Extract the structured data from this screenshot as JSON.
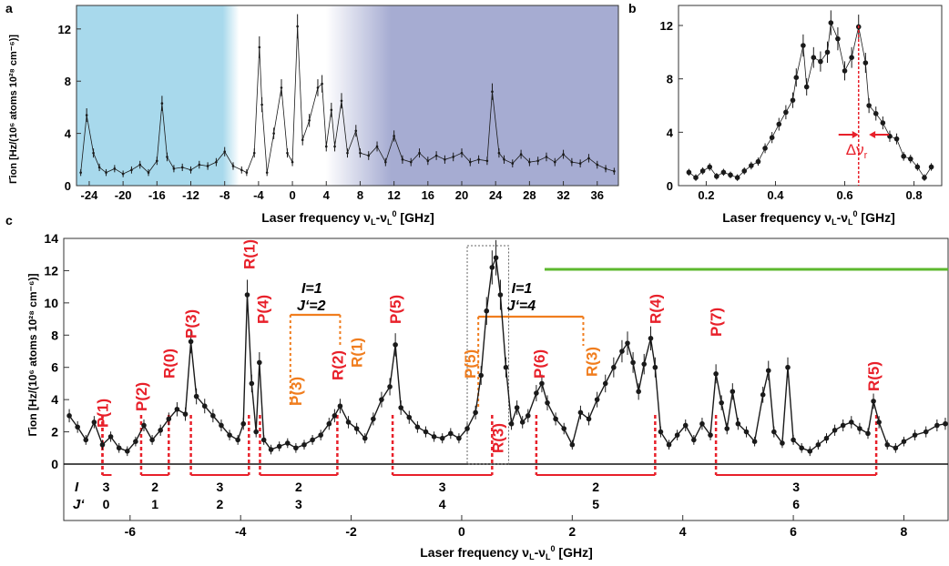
{
  "panels": {
    "a": {
      "letter": "a",
      "xlabel": "Laser frequency ν",
      "xlabel_sub1": "L",
      "xlabel_mid": "-ν",
      "xlabel_sub2": "L",
      "xlabel_sup": "0",
      "xlabel_unit": " [GHz]",
      "ylabel": "Γ̄ion [Hz/(10⁶ atoms 10²⁸ cm⁻⁶)]",
      "xticks": [
        "-24",
        "-20",
        "-16",
        "-12",
        "-8",
        "-4",
        "0",
        "4",
        "8",
        "12",
        "16",
        "20",
        "24",
        "28",
        "32",
        "36"
      ],
      "yticks": [
        "0",
        "4",
        "8",
        "12"
      ]
    },
    "b": {
      "letter": "b",
      "xlabel": "Laser frequency ν",
      "xlabel_sub1": "L",
      "xlabel_mid": "-ν",
      "xlabel_sub2": "L",
      "xlabel_sup": "0",
      "xlabel_unit": " [GHz]",
      "xticks": [
        "0.2",
        "0.4",
        "0.6",
        "0.8"
      ],
      "yticks": [
        "0",
        "4",
        "8",
        "12"
      ],
      "annotation": "Δν",
      "annotation_sub": "r"
    },
    "c": {
      "letter": "c",
      "xlabel": "Laser frequency ν",
      "xlabel_sub1": "L",
      "xlabel_mid": "-ν",
      "xlabel_sub2": "L",
      "xlabel_sup": "0",
      "xlabel_unit": " [GHz]",
      "ylabel": "Γ̄ion [Hz/(10⁶ atoms 10²⁸ cm⁻⁶)]",
      "xticks": [
        "-6",
        "-4",
        "-2",
        "0",
        "2",
        "4",
        "6",
        "8"
      ],
      "yticks": [
        "0",
        "2",
        "4",
        "6",
        "8",
        "10",
        "12",
        "14"
      ],
      "row_labels": [
        "I",
        "J‘"
      ],
      "groups": [
        {
          "I": "3",
          "J": "0"
        },
        {
          "I": "2",
          "J": "1"
        },
        {
          "I": "3",
          "J": "2"
        },
        {
          "I": "2",
          "J": "3"
        },
        {
          "I": "3",
          "J": "4"
        },
        {
          "I": "2",
          "J": "5"
        },
        {
          "I": "3",
          "J": "6"
        }
      ],
      "red_labels": [
        "P(1)",
        "P(2)",
        "R(0)",
        "P(3)",
        "R(1)",
        "P(4)",
        "R(2)",
        "P(5)",
        "R(3)",
        "P(6)",
        "R(4)",
        "P(7)",
        "R(5)"
      ],
      "orange_labels": [
        "P(3)",
        "R(1)",
        "P(5)",
        "R(3)"
      ],
      "box_labels": [
        {
          "l1": "I=1",
          "l2": "J‘=2"
        },
        {
          "l1": "I=1",
          "l2": "J‘=4"
        }
      ]
    }
  },
  "colors": {
    "data": "#1a1a1a",
    "red": "#e8202a",
    "orange": "#f07d1e",
    "green": "#5cb82e",
    "cyan": "#a8d9ec",
    "indigo": "#a6acd2"
  },
  "chart_data": [
    {
      "panel": "a",
      "type": "scatter",
      "xlim": [
        -25.5,
        38.5
      ],
      "ylim": [
        0,
        13.8
      ],
      "points": [
        [
          -25,
          1.0
        ],
        [
          -24.3,
          5.4
        ],
        [
          -23.5,
          2.5
        ],
        [
          -22.8,
          1.4
        ],
        [
          -22,
          1.0
        ],
        [
          -21,
          1.3
        ],
        [
          -20,
          0.9
        ],
        [
          -19,
          1.2
        ],
        [
          -18,
          1.6
        ],
        [
          -17,
          1.0
        ],
        [
          -16,
          1.9
        ],
        [
          -15.4,
          6.3
        ],
        [
          -14.8,
          2.2
        ],
        [
          -14,
          1.3
        ],
        [
          -13,
          1.4
        ],
        [
          -12,
          1.2
        ],
        [
          -11,
          1.6
        ],
        [
          -10,
          1.5
        ],
        [
          -9,
          1.8
        ],
        [
          -8,
          2.6
        ],
        [
          -7,
          1.5
        ],
        [
          -6,
          1.2
        ],
        [
          -5.4,
          1.0
        ],
        [
          -4.5,
          2.5
        ],
        [
          -3.9,
          10.6
        ],
        [
          -3.6,
          6.2
        ],
        [
          -3,
          1.0
        ],
        [
          -2.2,
          4.0
        ],
        [
          -1.3,
          7.5
        ],
        [
          -0.6,
          2.5
        ],
        [
          0,
          1.8
        ],
        [
          0.6,
          12.2
        ],
        [
          1.2,
          3.5
        ],
        [
          2,
          5.0
        ],
        [
          3,
          7.5
        ],
        [
          3.5,
          7.8
        ],
        [
          4,
          3.0
        ],
        [
          4.6,
          5.8
        ],
        [
          5,
          3.0
        ],
        [
          5.8,
          6.5
        ],
        [
          6.5,
          2.5
        ],
        [
          7.5,
          4.2
        ],
        [
          8,
          2.5
        ],
        [
          9,
          2.3
        ],
        [
          10,
          3.0
        ],
        [
          11,
          1.8
        ],
        [
          12,
          3.8
        ],
        [
          13,
          2.0
        ],
        [
          14,
          1.8
        ],
        [
          15,
          2.5
        ],
        [
          16,
          1.9
        ],
        [
          17,
          2.3
        ],
        [
          18,
          2.0
        ],
        [
          19,
          2.2
        ],
        [
          20,
          2.5
        ],
        [
          21,
          1.8
        ],
        [
          22,
          2.0
        ],
        [
          23,
          1.9
        ],
        [
          23.6,
          7.2
        ],
        [
          24.4,
          2.5
        ],
        [
          25,
          2.0
        ],
        [
          26,
          1.7
        ],
        [
          27,
          2.4
        ],
        [
          28,
          1.8
        ],
        [
          29,
          1.9
        ],
        [
          30,
          2.2
        ],
        [
          31,
          1.8
        ],
        [
          32,
          2.4
        ],
        [
          33,
          1.8
        ],
        [
          34,
          1.7
        ],
        [
          35,
          2.1
        ],
        [
          36,
          1.6
        ],
        [
          37,
          1.3
        ],
        [
          38,
          1.1
        ]
      ]
    },
    {
      "panel": "b",
      "type": "scatter",
      "xlim": [
        0.12,
        0.88
      ],
      "ylim": [
        0,
        13.5
      ],
      "points": [
        [
          0.15,
          1.0
        ],
        [
          0.17,
          0.6
        ],
        [
          0.19,
          1.1
        ],
        [
          0.21,
          1.4
        ],
        [
          0.23,
          0.7
        ],
        [
          0.25,
          1.0
        ],
        [
          0.27,
          0.8
        ],
        [
          0.29,
          0.6
        ],
        [
          0.31,
          1.1
        ],
        [
          0.33,
          1.5
        ],
        [
          0.35,
          1.8
        ],
        [
          0.37,
          2.8
        ],
        [
          0.39,
          3.6
        ],
        [
          0.41,
          4.6
        ],
        [
          0.43,
          5.5
        ],
        [
          0.45,
          6.4
        ],
        [
          0.46,
          8.1
        ],
        [
          0.48,
          10.5
        ],
        [
          0.49,
          7.4
        ],
        [
          0.51,
          9.6
        ],
        [
          0.53,
          9.3
        ],
        [
          0.55,
          10.0
        ],
        [
          0.56,
          12.2
        ],
        [
          0.58,
          11.0
        ],
        [
          0.6,
          8.6
        ],
        [
          0.62,
          9.6
        ],
        [
          0.64,
          11.9
        ],
        [
          0.66,
          9.2
        ],
        [
          0.67,
          6.0
        ],
        [
          0.69,
          5.4
        ],
        [
          0.71,
          4.7
        ],
        [
          0.73,
          3.7
        ],
        [
          0.75,
          3.5
        ],
        [
          0.77,
          2.2
        ],
        [
          0.79,
          2.0
        ],
        [
          0.81,
          1.4
        ],
        [
          0.83,
          0.6
        ],
        [
          0.85,
          1.4
        ]
      ],
      "marker_x": 0.64,
      "width_range": [
        0.64,
        0.67
      ]
    },
    {
      "panel": "c",
      "type": "line",
      "xlim": [
        -7.2,
        8.8
      ],
      "ylim": [
        -0.3,
        14
      ],
      "points": [
        [
          -7.1,
          3.0
        ],
        [
          -6.95,
          2.3
        ],
        [
          -6.8,
          1.5
        ],
        [
          -6.65,
          2.6
        ],
        [
          -6.5,
          1.2
        ],
        [
          -6.35,
          1.7
        ],
        [
          -6.2,
          1.0
        ],
        [
          -6.05,
          0.8
        ],
        [
          -5.9,
          1.4
        ],
        [
          -5.75,
          2.4
        ],
        [
          -5.6,
          1.5
        ],
        [
          -5.45,
          2.1
        ],
        [
          -5.3,
          2.8
        ],
        [
          -5.15,
          3.4
        ],
        [
          -5.0,
          3.1
        ],
        [
          -4.9,
          7.6
        ],
        [
          -4.8,
          4.2
        ],
        [
          -4.65,
          3.6
        ],
        [
          -4.5,
          3.0
        ],
        [
          -4.35,
          2.4
        ],
        [
          -4.2,
          1.8
        ],
        [
          -4.05,
          1.5
        ],
        [
          -3.95,
          2.5
        ],
        [
          -3.88,
          10.5
        ],
        [
          -3.8,
          5.0
        ],
        [
          -3.72,
          2.0
        ],
        [
          -3.66,
          6.3
        ],
        [
          -3.58,
          1.5
        ],
        [
          -3.45,
          0.9
        ],
        [
          -3.3,
          1.1
        ],
        [
          -3.15,
          1.3
        ],
        [
          -3.0,
          1.0
        ],
        [
          -2.85,
          1.2
        ],
        [
          -2.7,
          1.5
        ],
        [
          -2.55,
          1.8
        ],
        [
          -2.4,
          2.5
        ],
        [
          -2.3,
          3.0
        ],
        [
          -2.2,
          3.6
        ],
        [
          -2.05,
          2.6
        ],
        [
          -1.9,
          2.2
        ],
        [
          -1.75,
          1.6
        ],
        [
          -1.6,
          2.8
        ],
        [
          -1.45,
          4.0
        ],
        [
          -1.3,
          4.8
        ],
        [
          -1.2,
          7.4
        ],
        [
          -1.1,
          3.5
        ],
        [
          -0.95,
          2.9
        ],
        [
          -0.8,
          2.3
        ],
        [
          -0.65,
          2.0
        ],
        [
          -0.5,
          1.7
        ],
        [
          -0.35,
          1.6
        ],
        [
          -0.2,
          1.9
        ],
        [
          -0.05,
          1.6
        ],
        [
          0.1,
          2.2
        ],
        [
          0.25,
          3.2
        ],
        [
          0.35,
          5.5
        ],
        [
          0.45,
          9.5
        ],
        [
          0.55,
          12.2
        ],
        [
          0.62,
          12.8
        ],
        [
          0.7,
          10.5
        ],
        [
          0.8,
          6.0
        ],
        [
          0.9,
          2.5
        ],
        [
          1.0,
          3.5
        ],
        [
          1.1,
          2.6
        ],
        [
          1.2,
          3.0
        ],
        [
          1.35,
          4.4
        ],
        [
          1.45,
          5.0
        ],
        [
          1.55,
          3.8
        ],
        [
          1.7,
          2.8
        ],
        [
          1.85,
          2.2
        ],
        [
          2.0,
          1.2
        ],
        [
          2.15,
          3.2
        ],
        [
          2.3,
          2.8
        ],
        [
          2.45,
          4.0
        ],
        [
          2.6,
          5.0
        ],
        [
          2.75,
          6.0
        ],
        [
          2.9,
          7.0
        ],
        [
          3.0,
          7.5
        ],
        [
          3.1,
          6.3
        ],
        [
          3.2,
          4.5
        ],
        [
          3.3,
          6.2
        ],
        [
          3.42,
          7.8
        ],
        [
          3.5,
          6.0
        ],
        [
          3.6,
          2.0
        ],
        [
          3.75,
          1.2
        ],
        [
          3.9,
          1.8
        ],
        [
          4.05,
          2.4
        ],
        [
          4.2,
          1.5
        ],
        [
          4.35,
          2.5
        ],
        [
          4.5,
          1.8
        ],
        [
          4.6,
          5.6
        ],
        [
          4.7,
          3.8
        ],
        [
          4.8,
          2.2
        ],
        [
          4.9,
          4.5
        ],
        [
          5.0,
          2.5
        ],
        [
          5.15,
          2.0
        ],
        [
          5.3,
          1.4
        ],
        [
          5.45,
          4.3
        ],
        [
          5.55,
          5.8
        ],
        [
          5.65,
          2.0
        ],
        [
          5.8,
          1.3
        ],
        [
          5.9,
          6.0
        ],
        [
          6.0,
          1.5
        ],
        [
          6.15,
          1.0
        ],
        [
          6.3,
          0.8
        ],
        [
          6.45,
          1.2
        ],
        [
          6.6,
          1.6
        ],
        [
          6.75,
          2.1
        ],
        [
          6.9,
          2.4
        ],
        [
          7.05,
          2.6
        ],
        [
          7.2,
          2.2
        ],
        [
          7.35,
          1.9
        ],
        [
          7.45,
          3.9
        ],
        [
          7.55,
          2.6
        ],
        [
          7.7,
          1.2
        ],
        [
          7.85,
          1.0
        ],
        [
          8.0,
          1.4
        ],
        [
          8.2,
          1.8
        ],
        [
          8.4,
          2.0
        ],
        [
          8.6,
          2.4
        ],
        [
          8.75,
          2.5
        ]
      ]
    }
  ]
}
